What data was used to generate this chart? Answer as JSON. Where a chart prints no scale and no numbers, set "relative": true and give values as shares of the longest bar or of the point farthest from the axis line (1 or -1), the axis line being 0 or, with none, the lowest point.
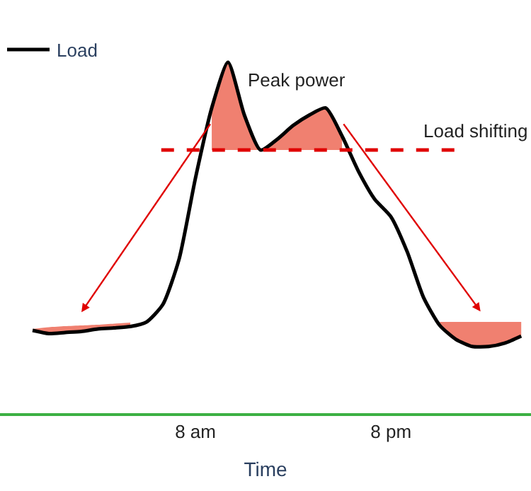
{
  "chart_data": {
    "type": "line",
    "relative": true,
    "xlabel": "Time",
    "categories": [
      null,
      null,
      null,
      null,
      null,
      null,
      null,
      null,
      null,
      null,
      "8 am",
      null,
      null,
      null,
      null,
      null,
      null,
      null,
      null,
      null,
      null,
      null,
      "8 pm",
      null,
      null,
      null,
      null,
      null,
      null,
      null,
      null
    ],
    "legend": "top left",
    "marker": "none",
    "series": [
      {
        "name": "Load",
        "color": "#000000",
        "values": [
          0.236,
          0.227,
          0.23,
          0.233,
          0.24,
          0.243,
          0.247,
          0.26,
          0.31,
          0.44,
          0.67,
          0.87,
          1.0,
          0.85,
          0.75,
          0.78,
          0.82,
          0.85,
          0.87,
          0.79,
          0.69,
          0.61,
          0.56,
          0.46,
          0.33,
          0.25,
          0.21,
          0.19,
          0.19,
          0.2,
          0.22
        ],
        "lower": [
          0.236,
          0.227,
          0.23,
          0.233,
          0.24,
          0.243,
          0.247,
          null,
          null,
          null,
          null,
          0.75,
          0.75,
          0.75,
          0.75,
          0.75,
          0.75,
          0.75,
          0.75,
          0.75,
          null,
          null,
          null,
          null,
          null,
          0.25,
          0.21,
          0.19,
          0.19,
          0.2,
          0.22
        ],
        "upper": [
          0.24,
          0.245,
          0.248,
          0.25,
          0.252,
          0.255,
          0.258,
          null,
          null,
          null,
          null,
          0.87,
          1.0,
          0.85,
          0.75,
          0.78,
          0.82,
          0.85,
          0.87,
          0.79,
          null,
          null,
          null,
          null,
          null,
          0.26,
          0.26,
          0.26,
          0.26,
          0.26,
          0.26
        ]
      }
    ],
    "ref_lines": [
      {
        "axis": "y",
        "value": 0.75,
        "label": "Load shifting",
        "color": "#e00000",
        "line_style": "dashed"
      }
    ],
    "annotations": [
      "Peak power"
    ]
  }
}
